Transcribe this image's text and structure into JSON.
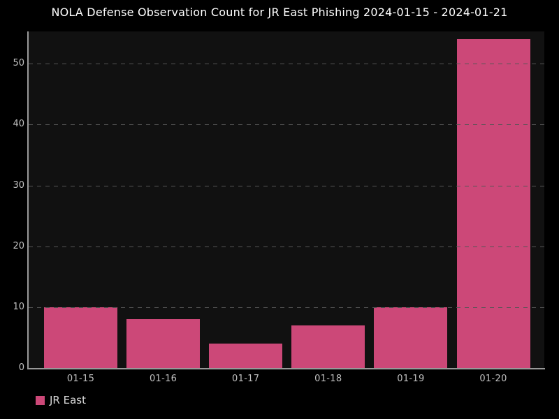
{
  "title": "NOLA Defense Observation Count for JR East Phishing 2024-01-15 - 2024-01-21",
  "legend": {
    "label": "JR East"
  },
  "colors": {
    "background": "#000000",
    "plot_background": "#111111",
    "bar": "#cc4878",
    "grid": "#555555",
    "spine": "#999999",
    "tick_label": "#c0c0c0",
    "title_text": "#ffffff",
    "legend_text": "#d9d9d9"
  },
  "chart_data": {
    "type": "bar",
    "categories": [
      "01-15",
      "01-16",
      "01-17",
      "01-18",
      "01-19",
      "01-20"
    ],
    "series": [
      {
        "name": "JR East",
        "values": [
          10,
          8,
          4,
          7,
          10,
          54
        ]
      }
    ],
    "title": "NOLA Defense Observation Count for JR East Phishing 2024-01-15 - 2024-01-21",
    "xlabel": "",
    "ylabel": "",
    "yticks": [
      0,
      10,
      20,
      30,
      40,
      50
    ],
    "ylim": [
      0,
      55.3
    ],
    "grid": "dashed-horizontal-over-bars",
    "legend_position": "bottom-left",
    "theme": "dark"
  }
}
